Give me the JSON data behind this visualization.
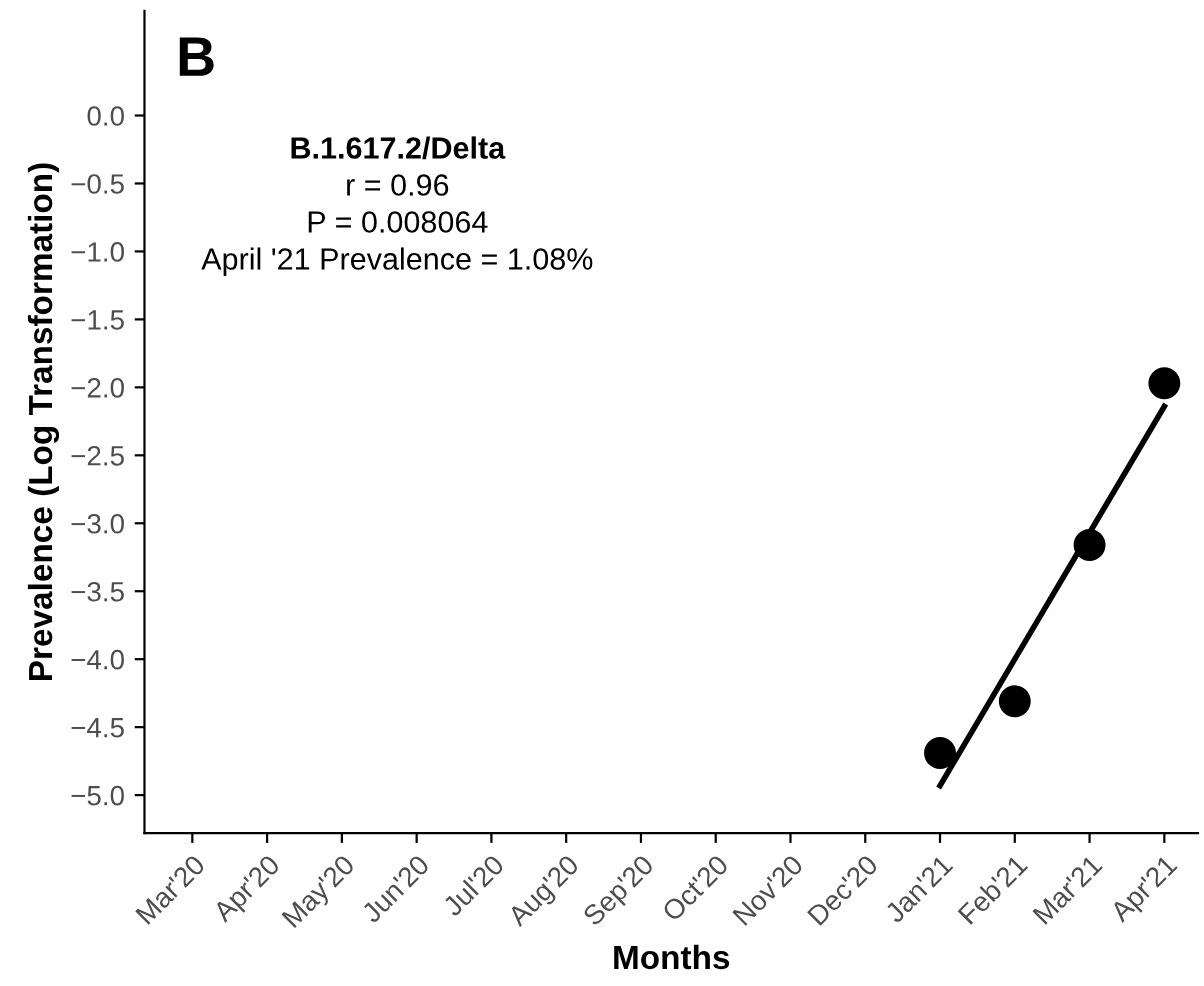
{
  "chart_data": {
    "type": "scatter",
    "xlabel": "Months",
    "ylabel": "Prevalence (Log Transformation)",
    "categories": [
      "Mar'20",
      "Apr'20",
      "May'20",
      "Jun'20",
      "Jul'20",
      "Aug'20",
      "Sep'20",
      "Oct'20",
      "Nov'20",
      "Dec'20",
      "Jan'21",
      "Feb'21",
      "Mar'21",
      "Apr'21"
    ],
    "series": [
      {
        "color": "#000000",
        "marker": "circle",
        "values": [
          null,
          null,
          null,
          null,
          null,
          null,
          null,
          null,
          null,
          null,
          -4.69,
          -4.31,
          -3.16,
          -1.97
        ]
      },
      {
        "type": "line",
        "color": "#000000",
        "marker": "none",
        "values": [
          null,
          null,
          null,
          null,
          null,
          null,
          null,
          null,
          null,
          null,
          -4.93,
          -4.0,
          -3.07,
          -2.14
        ]
      }
    ],
    "ylim": [
      -5.28,
      0.77
    ],
    "yticks": [
      {
        "value": 0,
        "label": "0.0"
      },
      {
        "value": -0.5,
        "label": "−0.5"
      },
      {
        "value": -1,
        "label": "−1.0"
      },
      {
        "value": -1.5,
        "label": "−1.5"
      },
      {
        "value": -2,
        "label": "−2.0"
      },
      {
        "value": -2.5,
        "label": "−2.5"
      },
      {
        "value": -3,
        "label": "−3.0"
      },
      {
        "value": -3.5,
        "label": "−3.5"
      },
      {
        "value": -4,
        "label": "−4.0"
      },
      {
        "value": -4.5,
        "label": "−4.5"
      },
      {
        "value": -5,
        "label": "−5.0"
      }
    ],
    "annotations": [
      "B",
      "B.1.617.2/Delta",
      "r = 0.96",
      "P = 0.008064",
      "April '21 Prevalence = 1.08%"
    ],
    "grid": false,
    "legend": false
  }
}
